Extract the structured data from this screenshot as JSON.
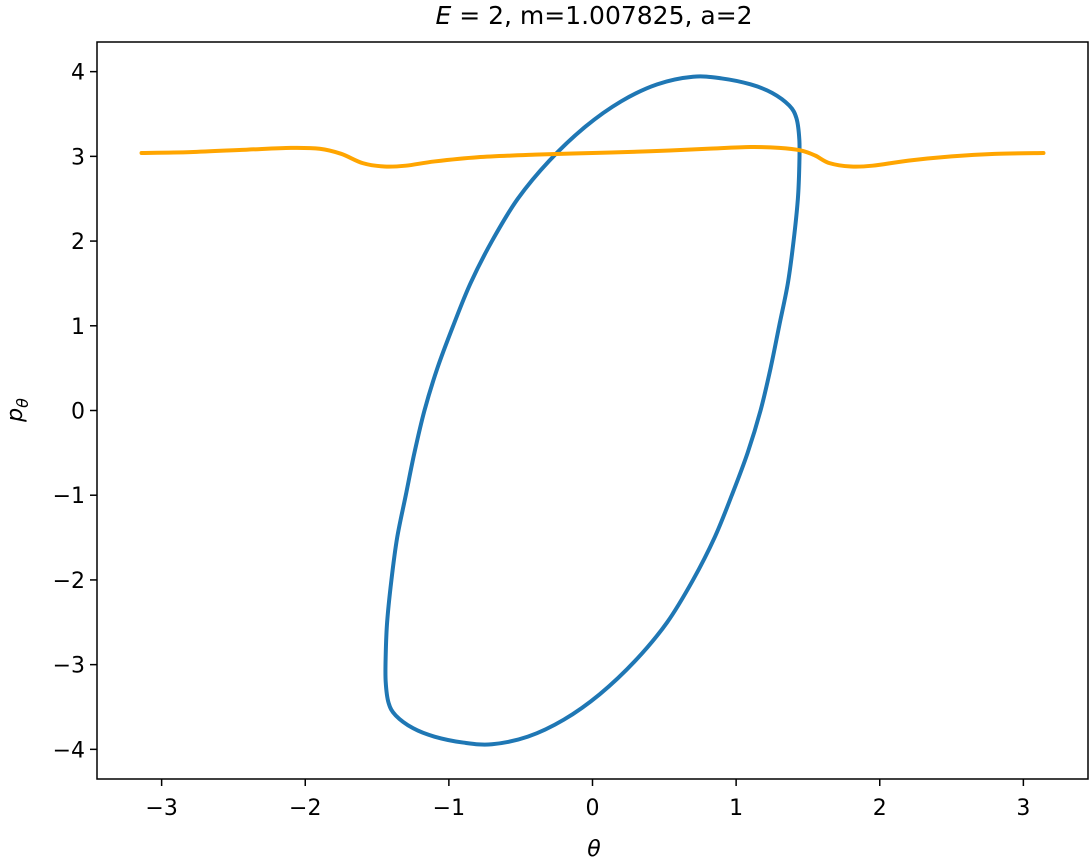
{
  "chart_data": {
    "type": "line",
    "title": {
      "variable": "E",
      "rest": " = 2, m=1.007825, a=2"
    },
    "xlabel": "θ",
    "ylabel": {
      "base": "p",
      "subscript": "θ"
    },
    "xlim": [
      -3.45,
      3.45
    ],
    "ylim": [
      -4.35,
      4.35
    ],
    "xticks": [
      -3,
      -2,
      -1,
      0,
      1,
      2,
      3
    ],
    "yticks": [
      -4,
      -3,
      -2,
      -1,
      0,
      1,
      2,
      3,
      4
    ],
    "xtick_labels": [
      "−3",
      "−2",
      "−1",
      "0",
      "1",
      "2",
      "3"
    ],
    "ytick_labels": [
      "−4",
      "−3",
      "−2",
      "−1",
      "0",
      "1",
      "2",
      "3",
      "4"
    ],
    "grid": false,
    "series": [
      {
        "color": "#1f77b4",
        "closed": true,
        "points": [
          [
            0.7,
            3.94
          ],
          [
            0.9,
            3.92
          ],
          [
            1.1,
            3.85
          ],
          [
            1.25,
            3.75
          ],
          [
            1.37,
            3.6
          ],
          [
            1.42,
            3.45
          ],
          [
            1.44,
            3.2
          ],
          [
            1.44,
            2.9
          ],
          [
            1.43,
            2.5
          ],
          [
            1.4,
            2.0
          ],
          [
            1.36,
            1.5
          ],
          [
            1.3,
            1.0
          ],
          [
            1.24,
            0.5
          ],
          [
            1.17,
            0.0
          ],
          [
            1.08,
            -0.5
          ],
          [
            0.97,
            -1.0
          ],
          [
            0.85,
            -1.5
          ],
          [
            0.7,
            -2.0
          ],
          [
            0.52,
            -2.5
          ],
          [
            0.3,
            -2.95
          ],
          [
            0.05,
            -3.35
          ],
          [
            -0.2,
            -3.65
          ],
          [
            -0.45,
            -3.85
          ],
          [
            -0.7,
            -3.94
          ],
          [
            -0.9,
            -3.92
          ],
          [
            -1.1,
            -3.85
          ],
          [
            -1.25,
            -3.75
          ],
          [
            -1.37,
            -3.6
          ],
          [
            -1.42,
            -3.45
          ],
          [
            -1.44,
            -3.2
          ],
          [
            -1.44,
            -2.9
          ],
          [
            -1.43,
            -2.5
          ],
          [
            -1.4,
            -2.0
          ],
          [
            -1.36,
            -1.5
          ],
          [
            -1.3,
            -1.0
          ],
          [
            -1.24,
            -0.5
          ],
          [
            -1.17,
            0.0
          ],
          [
            -1.08,
            0.5
          ],
          [
            -0.97,
            1.0
          ],
          [
            -0.85,
            1.5
          ],
          [
            -0.7,
            2.0
          ],
          [
            -0.52,
            2.5
          ],
          [
            -0.3,
            2.95
          ],
          [
            -0.05,
            3.35
          ],
          [
            0.2,
            3.65
          ],
          [
            0.45,
            3.85
          ]
        ]
      },
      {
        "color": "#ffa500",
        "closed": false,
        "points": [
          [
            -3.14,
            3.04
          ],
          [
            -2.8,
            3.05
          ],
          [
            -2.4,
            3.08
          ],
          [
            -2.1,
            3.1
          ],
          [
            -1.9,
            3.09
          ],
          [
            -1.75,
            3.03
          ],
          [
            -1.6,
            2.92
          ],
          [
            -1.45,
            2.88
          ],
          [
            -1.3,
            2.89
          ],
          [
            -1.1,
            2.94
          ],
          [
            -0.8,
            2.99
          ],
          [
            -0.4,
            3.02
          ],
          [
            0.0,
            3.04
          ],
          [
            0.4,
            3.06
          ],
          [
            0.8,
            3.09
          ],
          [
            1.1,
            3.11
          ],
          [
            1.3,
            3.1
          ],
          [
            1.45,
            3.07
          ],
          [
            1.55,
            3.01
          ],
          [
            1.65,
            2.92
          ],
          [
            1.8,
            2.88
          ],
          [
            1.95,
            2.89
          ],
          [
            2.2,
            2.95
          ],
          [
            2.5,
            3.0
          ],
          [
            2.8,
            3.03
          ],
          [
            3.14,
            3.04
          ]
        ]
      }
    ]
  }
}
